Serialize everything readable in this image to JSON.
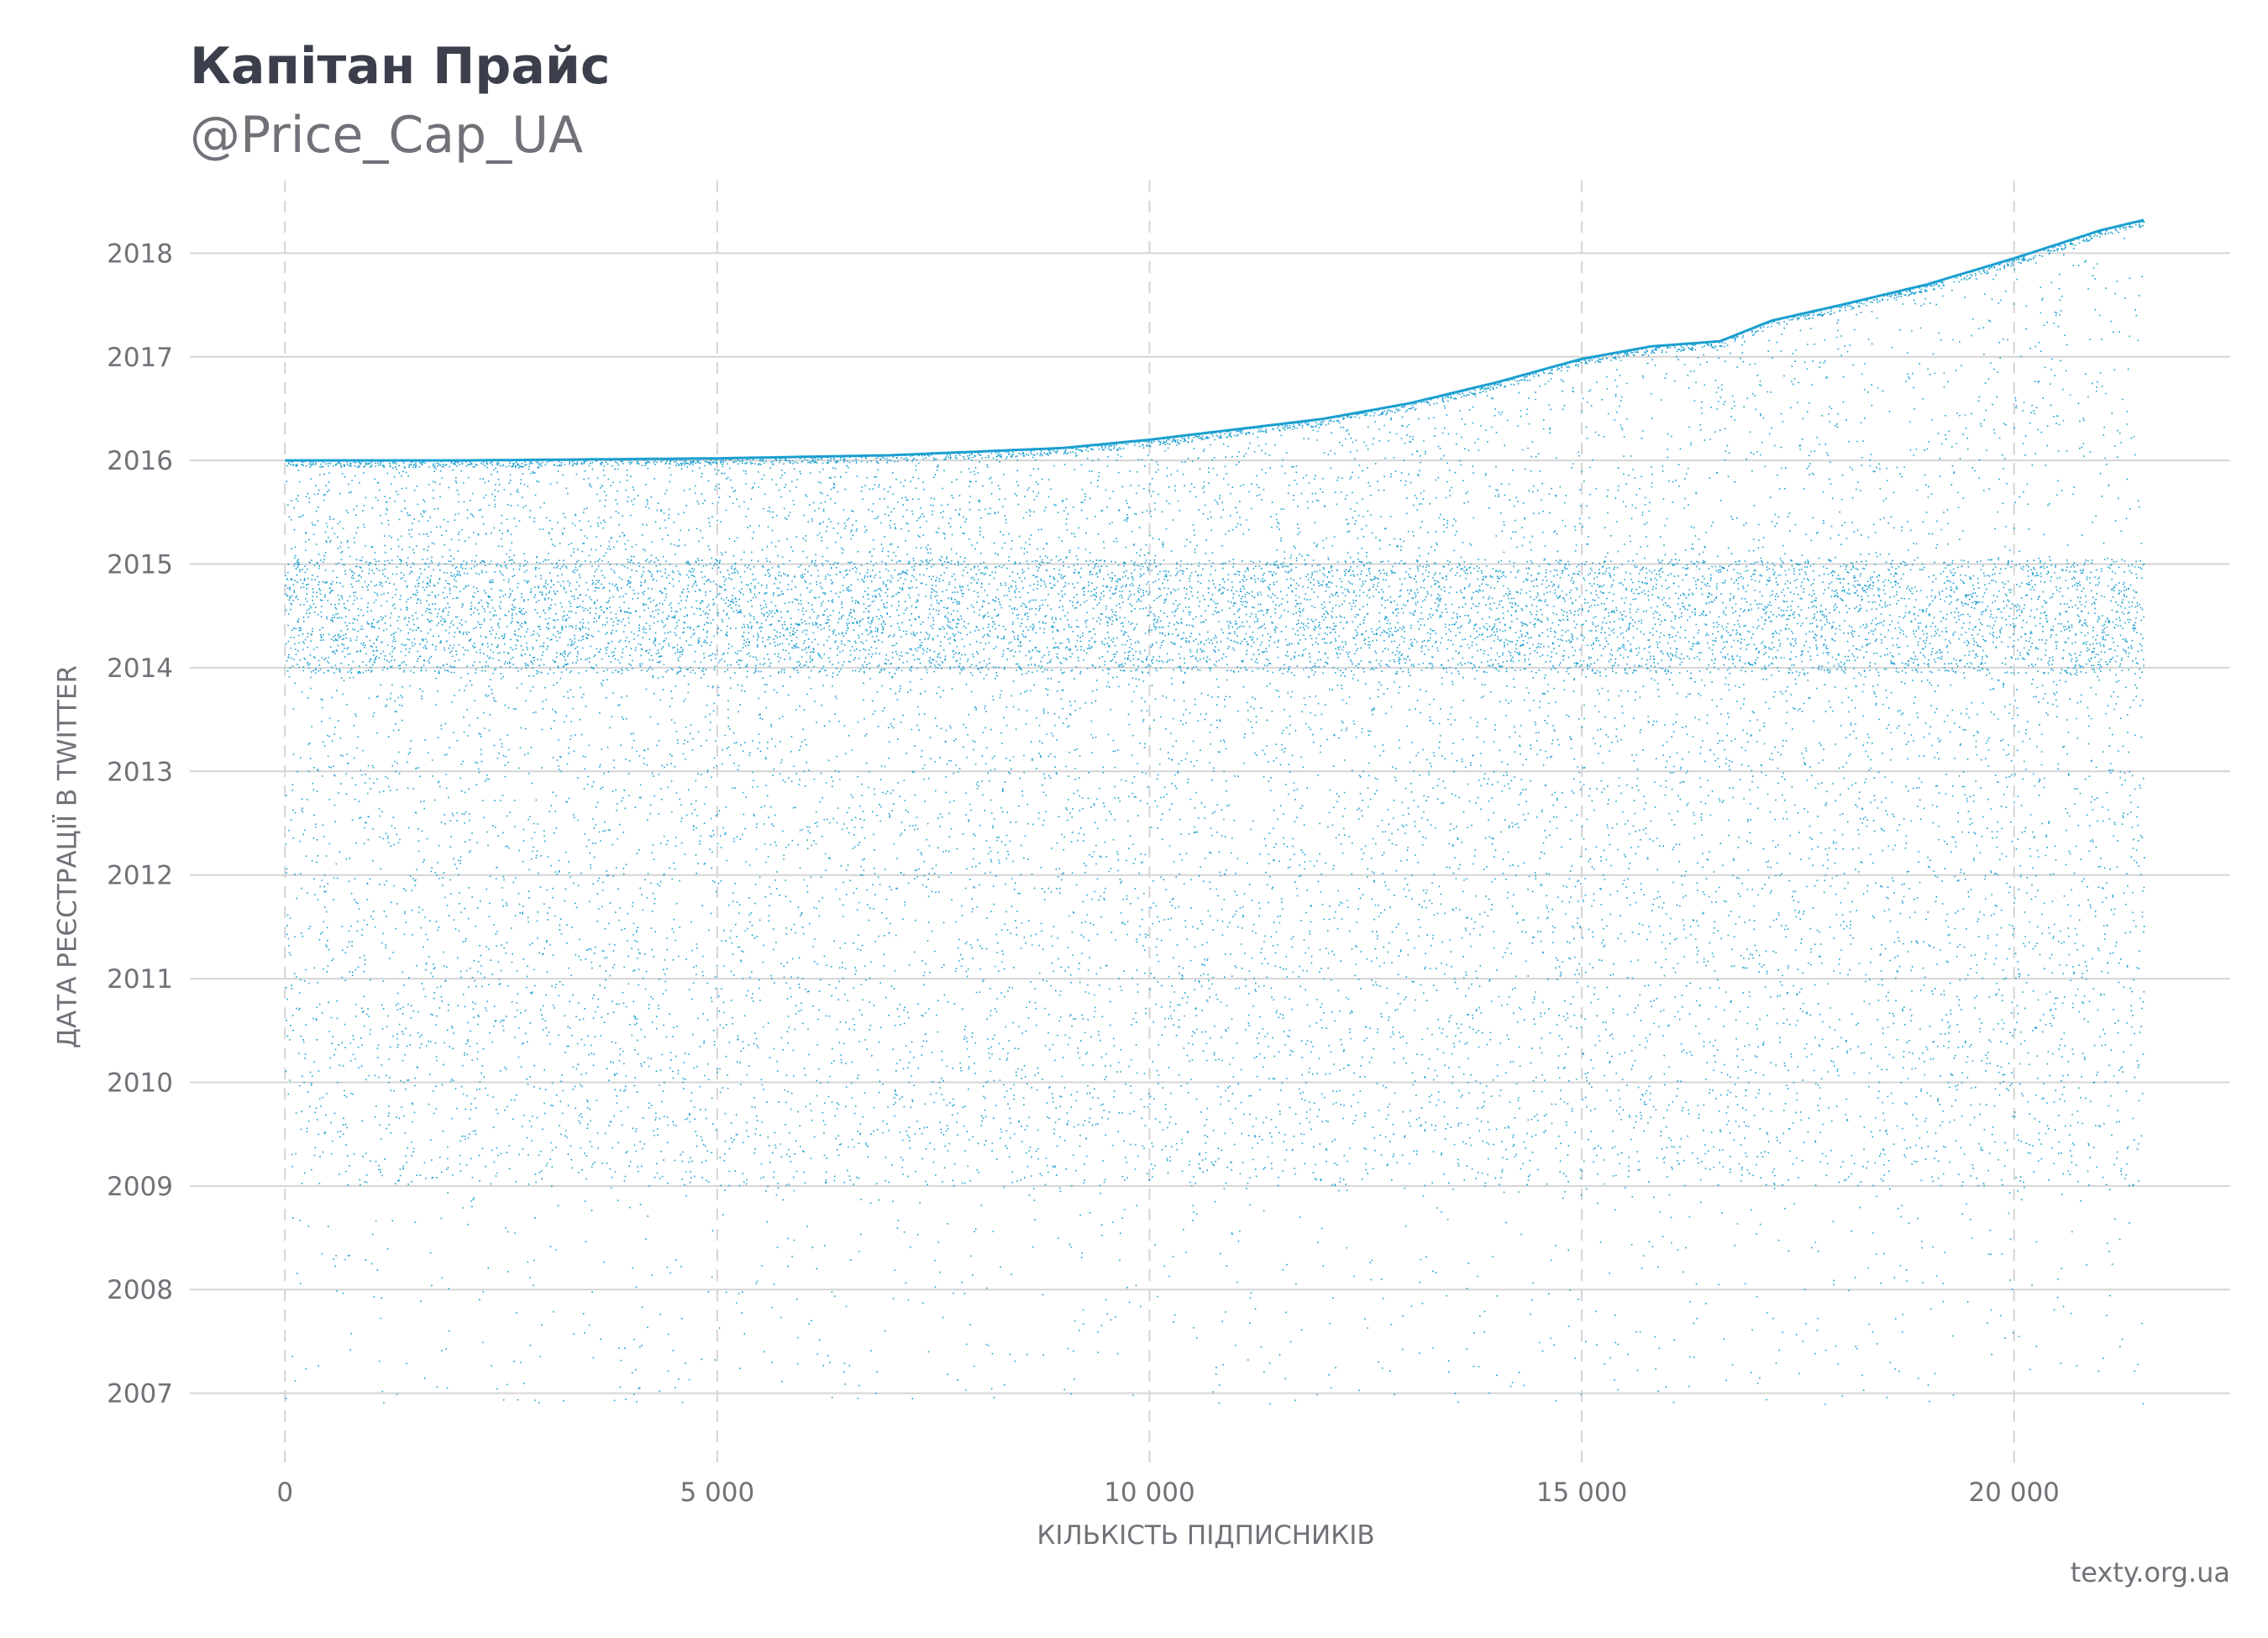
{
  "header": {
    "title": "Капітан Прайс",
    "subtitle": "@Price_Cap_UA"
  },
  "footer": {
    "source": "texty.org.ua"
  },
  "colors": {
    "point": "#1a9fd0",
    "grid": "#d4d4d4",
    "text": "#707278"
  },
  "chart_data": {
    "type": "scatter",
    "xlabel": "КІЛЬКІСТЬ ПІДПИСНИКІВ",
    "ylabel": "ДАТА РЕЄСТРАЦІЇ В TWITTER",
    "xlim": [
      -1100,
      22500
    ],
    "ylim": [
      2006.3,
      2018.7
    ],
    "x_ticks": [
      0,
      5000,
      10000,
      15000,
      20000
    ],
    "x_tick_labels": [
      "0",
      "5 000",
      "10 000",
      "15 000",
      "20 000"
    ],
    "y_ticks": [
      2007,
      2008,
      2009,
      2010,
      2011,
      2012,
      2013,
      2014,
      2015,
      2016,
      2017,
      2018
    ],
    "y_tick_labels": [
      "2007",
      "2008",
      "2009",
      "2010",
      "2011",
      "2012",
      "2013",
      "2014",
      "2015",
      "2016",
      "2017",
      "2018"
    ],
    "grid": {
      "x": "dashed",
      "y": "solid"
    },
    "point_count": 21500,
    "upper_envelope": {
      "x": [
        0,
        2000,
        5000,
        7000,
        9000,
        10000,
        11000,
        12000,
        13000,
        14000,
        15000,
        15800,
        16600,
        17200,
        18000,
        19000,
        20000,
        21000,
        21500
      ],
      "y": [
        2016.0,
        2016.0,
        2016.02,
        2016.05,
        2016.12,
        2016.2,
        2016.3,
        2016.4,
        2016.55,
        2016.75,
        2016.98,
        2017.1,
        2017.15,
        2017.35,
        2017.5,
        2017.7,
        2017.95,
        2018.22,
        2018.32
      ]
    },
    "clusters": [
      {
        "y_range": [
          2014.0,
          2015.0
        ],
        "density": "high"
      },
      {
        "y_range": [
          2009.0,
          2014.0
        ],
        "density": "medium"
      },
      {
        "y_range": [
          2006.9,
          2009.0
        ],
        "density": "low"
      }
    ]
  }
}
